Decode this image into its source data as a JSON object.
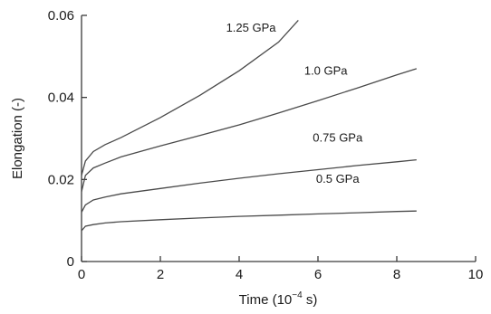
{
  "chart_data": {
    "type": "line",
    "xlabel_main": "Time (10",
    "xlabel_exp": "−4",
    "xlabel_tail": " s)",
    "ylabel": "Elongation (-)",
    "xlim": [
      0,
      10
    ],
    "ylim": [
      0,
      0.06
    ],
    "x_ticks": [
      0,
      2,
      4,
      6,
      8,
      10
    ],
    "x_tick_labels": [
      "0",
      "2",
      "4",
      "6",
      "8",
      "10"
    ],
    "y_ticks": [
      0,
      0.02,
      0.04,
      0.06
    ],
    "y_tick_labels": [
      "0",
      "0.02",
      "0.04",
      "0.06"
    ],
    "grid": false,
    "series": [
      {
        "name": "1.25 GPa",
        "x": [
          0,
          0.1,
          0.3,
          0.6,
          1.0,
          2.0,
          3.0,
          4.0,
          5.0,
          5.5
        ],
        "y": [
          0.021,
          0.0245,
          0.0268,
          0.0285,
          0.0302,
          0.0351,
          0.0405,
          0.0465,
          0.0535,
          0.0588
        ]
      },
      {
        "name": "1.0 GPa",
        "x": [
          0,
          0.1,
          0.3,
          0.6,
          1.0,
          2.0,
          3.0,
          4.0,
          5.0,
          6.0,
          7.0,
          8.0,
          8.5
        ],
        "y": [
          0.017,
          0.021,
          0.0228,
          0.024,
          0.0255,
          0.0282,
          0.0307,
          0.0333,
          0.0362,
          0.0392,
          0.0423,
          0.0455,
          0.047
        ]
      },
      {
        "name": "0.75 GPa",
        "x": [
          0,
          0.1,
          0.3,
          0.6,
          1.0,
          2.0,
          3.0,
          4.0,
          5.0,
          6.0,
          7.0,
          8.0,
          8.5
        ],
        "y": [
          0.012,
          0.0138,
          0.015,
          0.0157,
          0.0165,
          0.0178,
          0.0191,
          0.0203,
          0.0214,
          0.0224,
          0.0234,
          0.0243,
          0.0248
        ]
      },
      {
        "name": "0.5 GPa",
        "x": [
          0,
          0.1,
          0.3,
          0.6,
          1.0,
          2.0,
          3.0,
          4.0,
          5.0,
          6.0,
          7.0,
          8.0,
          8.5
        ],
        "y": [
          0.0075,
          0.0086,
          0.009,
          0.0094,
          0.0097,
          0.0102,
          0.0106,
          0.011,
          0.0113,
          0.0116,
          0.0119,
          0.0122,
          0.0123
        ]
      }
    ],
    "series_label_anchor": [
      {
        "x": 4.3,
        "y": 0.056
      },
      {
        "x": 6.2,
        "y": 0.0455
      },
      {
        "x": 6.5,
        "y": 0.0292
      },
      {
        "x": 6.5,
        "y": 0.0192
      }
    ]
  }
}
